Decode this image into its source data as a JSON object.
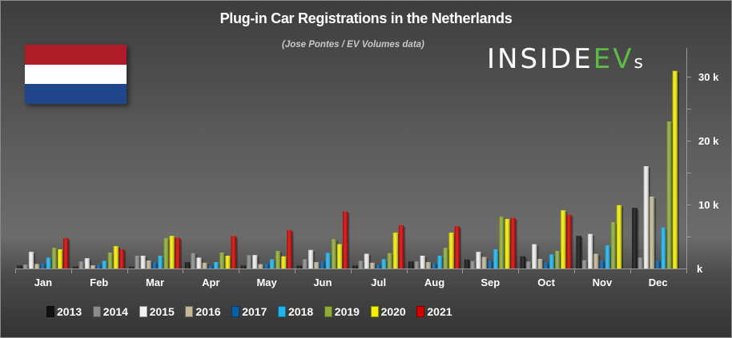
{
  "chart_data": {
    "type": "bar",
    "title": "Plug-in Car Registrations in the Netherlands",
    "subtitle": "(Jose Pontes / EV Volumes data)",
    "categories": [
      "Jan",
      "Feb",
      "Mar",
      "Apr",
      "May",
      "Jun",
      "Jul",
      "Aug",
      "Sep",
      "Oct",
      "Nov",
      "Dec"
    ],
    "y_ticks": [
      {
        "value": 0,
        "label": "k"
      },
      {
        "value": 10000,
        "label": "10 k"
      },
      {
        "value": 20000,
        "label": "20 k"
      },
      {
        "value": 30000,
        "label": "30 k"
      }
    ],
    "ylim": [
      0,
      34000
    ],
    "y_axis_side": "right",
    "grid": false,
    "legend_position": "bottom",
    "series": [
      {
        "name": "2013",
        "color": "#111111",
        "values": [
          460,
          300,
          300,
          1000,
          460,
          460,
          460,
          1100,
          1400,
          1900,
          5100,
          9500
        ]
      },
      {
        "name": "2014",
        "color": "#8c8c8c",
        "values": [
          600,
          1100,
          2000,
          2400,
          2100,
          1450,
          1200,
          1100,
          1150,
          1100,
          1300,
          1700
        ]
      },
      {
        "name": "2015",
        "color": "#f2f2f2",
        "values": [
          2600,
          1600,
          2000,
          1700,
          2100,
          2900,
          2300,
          2000,
          2600,
          3800,
          5400,
          16000
        ]
      },
      {
        "name": "2016",
        "color": "#c4b995",
        "values": [
          700,
          500,
          1250,
          900,
          670,
          1000,
          900,
          1000,
          1800,
          1500,
          2300,
          11250
        ]
      },
      {
        "name": "2017",
        "color": "#0b5fa5",
        "values": [
          800,
          600,
          1000,
          460,
          750,
          1100,
          600,
          800,
          1250,
          1000,
          1250,
          1250
        ]
      },
      {
        "name": "2018",
        "color": "#1fb4ea",
        "values": [
          1700,
          1200,
          2000,
          1000,
          1450,
          2450,
          1450,
          2000,
          3000,
          2200,
          3600,
          6400
        ]
      },
      {
        "name": "2019",
        "color": "#8fab38",
        "values": [
          3250,
          2500,
          4750,
          2500,
          2750,
          4600,
          2400,
          3250,
          8100,
          2750,
          7250,
          23000
        ]
      },
      {
        "name": "2020",
        "color": "#f5ef00",
        "values": [
          3000,
          3500,
          5100,
          2000,
          1900,
          3800,
          5600,
          5600,
          7750,
          9100,
          9900,
          30900
        ]
      },
      {
        "name": "2021",
        "color": "#d40000",
        "values": [
          4750,
          3000,
          4800,
          5100,
          6000,
          8900,
          6750,
          6600,
          7900,
          8400,
          null,
          null
        ]
      }
    ]
  },
  "flag": {
    "country": "Netherlands",
    "colors": [
      "#ae1c28",
      "#ffffff",
      "#21468b"
    ]
  },
  "logo": {
    "text_main": "INSIDE",
    "text_accent": "EV",
    "text_suffix": "s",
    "accent_color": "#5dbb46"
  }
}
